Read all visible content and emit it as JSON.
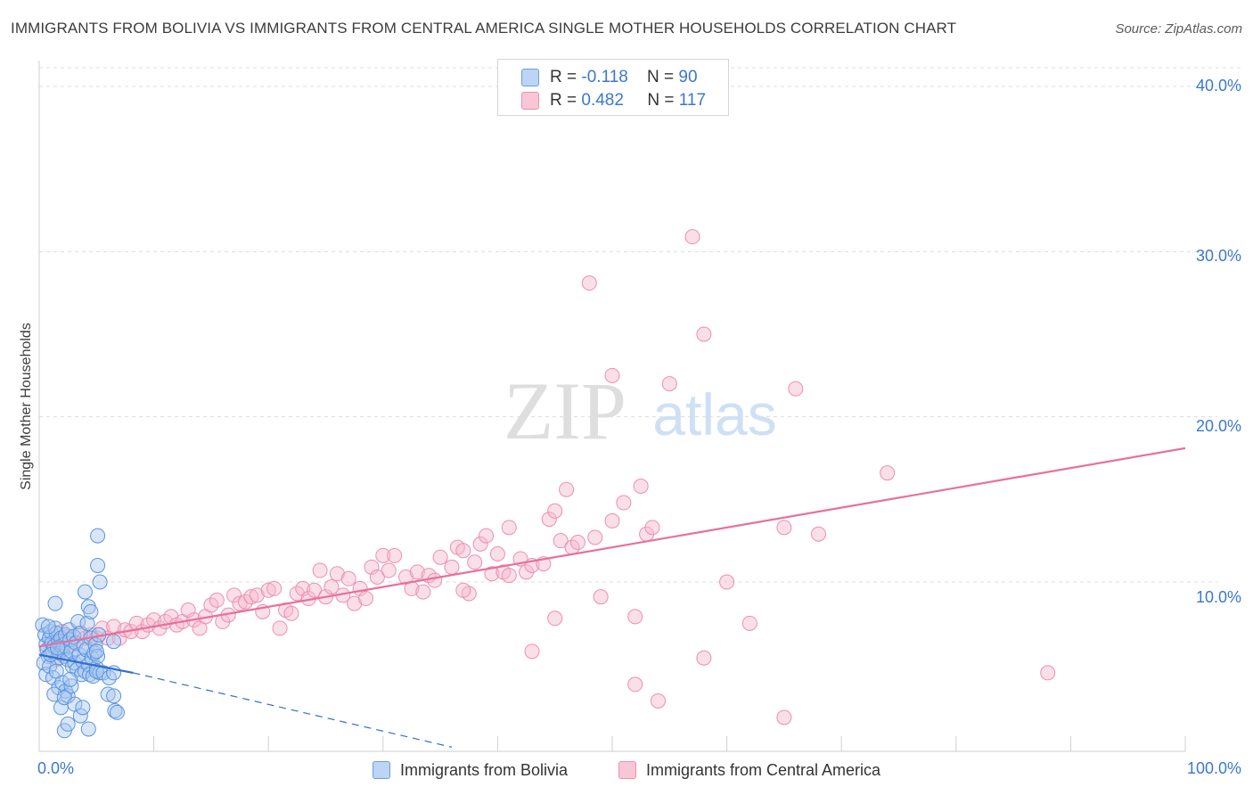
{
  "title": "IMMIGRANTS FROM BOLIVIA VS IMMIGRANTS FROM CENTRAL AMERICA SINGLE MOTHER HOUSEHOLDS CORRELATION CHART",
  "source": "Source: ZipAtlas.com",
  "watermark": {
    "zip": "ZIP",
    "atlas": "atlas"
  },
  "legend": {
    "r_label": "R =",
    "n_label": "N =",
    "entries": [
      {
        "r": "-0.118",
        "n": "90"
      },
      {
        "r": "0.482",
        "n": "117"
      }
    ]
  },
  "colors": {
    "blue_fill": "#a9c8f0",
    "blue_stroke": "#5b93e0",
    "blue_line": "#2f6fd0",
    "pink_fill": "#f6b9cc",
    "pink_stroke": "#ec8fae",
    "pink_line": "#e8709a",
    "axis_text": "#3a78d1"
  },
  "chart_data": {
    "type": "scatter",
    "title": "IMMIGRANTS FROM BOLIVIA VS IMMIGRANTS FROM CENTRAL AMERICA SINGLE MOTHER HOUSEHOLDS CORRELATION CHART",
    "xlabel": "",
    "ylabel": "Single Mother Households",
    "xlim": [
      0,
      100
    ],
    "ylim": [
      0,
      42
    ],
    "x_tick_labels": [
      "0.0%",
      "100.0%"
    ],
    "y_ticks": [
      10,
      20,
      30,
      40
    ],
    "y_tick_labels": [
      "10.0%",
      "20.0%",
      "30.0%",
      "40.0%"
    ],
    "grid": true,
    "series": [
      {
        "name": "Immigrants from Bolivia",
        "r": -0.118,
        "n": 90,
        "trend": {
          "x": [
            0,
            8.2
          ],
          "y": [
            5.6,
            4.5
          ]
        },
        "trend_extended": {
          "x": [
            8.2,
            36
          ],
          "y": [
            4.5,
            0.0
          ]
        },
        "points": [
          [
            0.3,
            7.4
          ],
          [
            0.5,
            6.8
          ],
          [
            0.6,
            6.2
          ],
          [
            0.7,
            5.9
          ],
          [
            0.8,
            5.5
          ],
          [
            0.9,
            6.6
          ],
          [
            1.0,
            7.0
          ],
          [
            1.1,
            6.3
          ],
          [
            1.2,
            5.8
          ],
          [
            1.3,
            6.1
          ],
          [
            1.4,
            7.2
          ],
          [
            1.5,
            6.9
          ],
          [
            1.6,
            5.4
          ],
          [
            1.7,
            6.4
          ],
          [
            1.8,
            5.7
          ],
          [
            1.9,
            6.6
          ],
          [
            2.0,
            5.9
          ],
          [
            2.1,
            6.2
          ],
          [
            2.2,
            5.5
          ],
          [
            2.3,
            6.8
          ],
          [
            2.4,
            6.0
          ],
          [
            2.5,
            5.3
          ],
          [
            2.6,
            7.1
          ],
          [
            2.7,
            6.5
          ],
          [
            2.8,
            5.8
          ],
          [
            2.9,
            4.9
          ],
          [
            3.0,
            6.7
          ],
          [
            3.1,
            5.1
          ],
          [
            3.2,
            6.3
          ],
          [
            3.3,
            4.7
          ],
          [
            3.4,
            7.6
          ],
          [
            3.5,
            5.6
          ],
          [
            3.6,
            6.9
          ],
          [
            3.7,
            4.4
          ],
          [
            3.8,
            5.2
          ],
          [
            3.9,
            6.1
          ],
          [
            4.0,
            4.6
          ],
          [
            4.1,
            5.9
          ],
          [
            4.2,
            7.5
          ],
          [
            4.3,
            5.0
          ],
          [
            4.4,
            4.4
          ],
          [
            4.5,
            6.6
          ],
          [
            4.6,
            5.4
          ],
          [
            4.7,
            4.3
          ],
          [
            4.8,
            5.7
          ],
          [
            4.9,
            6.2
          ],
          [
            5.0,
            4.8
          ],
          [
            5.1,
            5.5
          ],
          [
            5.2,
            6.8
          ],
          [
            5.3,
            4.5
          ],
          [
            0.4,
            5.1
          ],
          [
            0.6,
            4.4
          ],
          [
            0.9,
            4.9
          ],
          [
            1.2,
            4.2
          ],
          [
            1.5,
            4.6
          ],
          [
            1.7,
            3.6
          ],
          [
            2.0,
            3.9
          ],
          [
            2.3,
            3.4
          ],
          [
            2.5,
            3.1
          ],
          [
            2.8,
            3.7
          ],
          [
            1.3,
            3.2
          ],
          [
            1.9,
            2.4
          ],
          [
            2.2,
            3.0
          ],
          [
            3.1,
            2.6
          ],
          [
            3.6,
            1.9
          ],
          [
            4.3,
            1.1
          ],
          [
            2.2,
            1.0
          ],
          [
            2.5,
            1.4
          ],
          [
            3.8,
            2.4
          ],
          [
            5.0,
            4.6
          ],
          [
            5.6,
            4.5
          ],
          [
            6.1,
            4.2
          ],
          [
            6.5,
            4.5
          ],
          [
            5.0,
            5.8
          ],
          [
            6.5,
            6.4
          ],
          [
            1.4,
            8.7
          ],
          [
            4.0,
            9.4
          ],
          [
            4.3,
            8.5
          ],
          [
            4.5,
            8.2
          ],
          [
            5.3,
            10.0
          ],
          [
            5.1,
            11.0
          ],
          [
            5.1,
            12.8
          ],
          [
            6.0,
            3.2
          ],
          [
            6.5,
            3.1
          ],
          [
            6.6,
            2.2
          ],
          [
            6.8,
            2.1
          ],
          [
            1.0,
            5.6
          ],
          [
            1.6,
            6.0
          ],
          [
            2.7,
            4.1
          ],
          [
            0.8,
            7.3
          ]
        ]
      },
      {
        "name": "Immigrants from Central America",
        "r": 0.482,
        "n": 117,
        "trend": {
          "x": [
            0,
            100
          ],
          "y": [
            6.1,
            18.1
          ]
        },
        "points": [
          [
            1.0,
            6.1
          ],
          [
            1.5,
            5.3
          ],
          [
            2.0,
            7.0
          ],
          [
            2.5,
            6.7
          ],
          [
            3.0,
            6.2
          ],
          [
            3.5,
            6.9
          ],
          [
            4.0,
            6.6
          ],
          [
            4.5,
            6.8
          ],
          [
            5.0,
            6.6
          ],
          [
            5.5,
            7.2
          ],
          [
            6.0,
            6.6
          ],
          [
            6.5,
            7.3
          ],
          [
            7.0,
            6.6
          ],
          [
            7.5,
            7.1
          ],
          [
            8.0,
            7.0
          ],
          [
            8.5,
            7.5
          ],
          [
            9.0,
            7.0
          ],
          [
            9.5,
            7.4
          ],
          [
            10.0,
            7.7
          ],
          [
            10.5,
            7.2
          ],
          [
            11.0,
            7.6
          ],
          [
            11.5,
            7.9
          ],
          [
            12.0,
            7.4
          ],
          [
            12.5,
            7.6
          ],
          [
            13.0,
            8.3
          ],
          [
            13.5,
            7.7
          ],
          [
            14.0,
            7.2
          ],
          [
            14.5,
            7.9
          ],
          [
            15.0,
            8.6
          ],
          [
            15.5,
            8.9
          ],
          [
            16.0,
            7.6
          ],
          [
            16.5,
            8.0
          ],
          [
            17.0,
            9.2
          ],
          [
            17.5,
            8.7
          ],
          [
            18.0,
            8.8
          ],
          [
            18.5,
            9.1
          ],
          [
            19.0,
            9.2
          ],
          [
            19.5,
            8.2
          ],
          [
            20.0,
            9.5
          ],
          [
            20.5,
            9.6
          ],
          [
            21.0,
            7.2
          ],
          [
            21.5,
            8.3
          ],
          [
            22.0,
            8.1
          ],
          [
            22.5,
            9.3
          ],
          [
            23.0,
            9.6
          ],
          [
            23.5,
            9.0
          ],
          [
            24.0,
            9.5
          ],
          [
            24.5,
            10.7
          ],
          [
            25.0,
            9.1
          ],
          [
            25.5,
            9.7
          ],
          [
            26.0,
            10.5
          ],
          [
            26.5,
            9.2
          ],
          [
            27.0,
            10.2
          ],
          [
            27.5,
            8.7
          ],
          [
            28.0,
            9.6
          ],
          [
            28.5,
            9.0
          ],
          [
            29.0,
            10.9
          ],
          [
            29.5,
            10.3
          ],
          [
            30.0,
            11.6
          ],
          [
            30.5,
            10.7
          ],
          [
            31.0,
            11.6
          ],
          [
            32.0,
            10.3
          ],
          [
            32.5,
            9.6
          ],
          [
            33.0,
            10.6
          ],
          [
            33.5,
            9.4
          ],
          [
            34.0,
            10.4
          ],
          [
            34.5,
            10.1
          ],
          [
            35.0,
            11.5
          ],
          [
            36.0,
            10.9
          ],
          [
            36.5,
            12.1
          ],
          [
            37.0,
            11.9
          ],
          [
            37.5,
            9.3
          ],
          [
            38.0,
            11.2
          ],
          [
            38.5,
            12.3
          ],
          [
            39.0,
            12.8
          ],
          [
            39.5,
            10.5
          ],
          [
            40.0,
            11.7
          ],
          [
            40.5,
            10.6
          ],
          [
            41.0,
            13.3
          ],
          [
            42.0,
            11.4
          ],
          [
            42.5,
            10.6
          ],
          [
            43.0,
            11.0
          ],
          [
            44.0,
            11.1
          ],
          [
            44.5,
            13.8
          ],
          [
            45.0,
            14.3
          ],
          [
            45.5,
            12.5
          ],
          [
            46.0,
            15.6
          ],
          [
            46.5,
            12.1
          ],
          [
            47.0,
            12.4
          ],
          [
            48.0,
            28.1
          ],
          [
            48.5,
            12.7
          ],
          [
            50.0,
            13.7
          ],
          [
            49.0,
            9.1
          ],
          [
            51.0,
            14.8
          ],
          [
            52.0,
            7.9
          ],
          [
            53.0,
            12.9
          ],
          [
            53.5,
            13.3
          ],
          [
            55.0,
            22.0
          ],
          [
            57.0,
            30.9
          ],
          [
            58.0,
            25.0
          ],
          [
            58.0,
            5.4
          ],
          [
            60.0,
            10.0
          ],
          [
            65.0,
            13.3
          ],
          [
            66.0,
            21.7
          ],
          [
            65.0,
            1.8
          ],
          [
            62.0,
            7.5
          ],
          [
            68.0,
            12.9
          ],
          [
            74.0,
            16.6
          ],
          [
            88.0,
            4.5
          ],
          [
            50.0,
            22.5
          ],
          [
            52.0,
            3.8
          ],
          [
            54.0,
            2.8
          ],
          [
            52.5,
            15.8
          ],
          [
            43.0,
            5.8
          ],
          [
            45.0,
            7.8
          ],
          [
            41.0,
            10.4
          ],
          [
            37.0,
            9.5
          ]
        ]
      }
    ]
  },
  "axes": {
    "x_left": "0.0%",
    "x_right": "100.0%"
  }
}
